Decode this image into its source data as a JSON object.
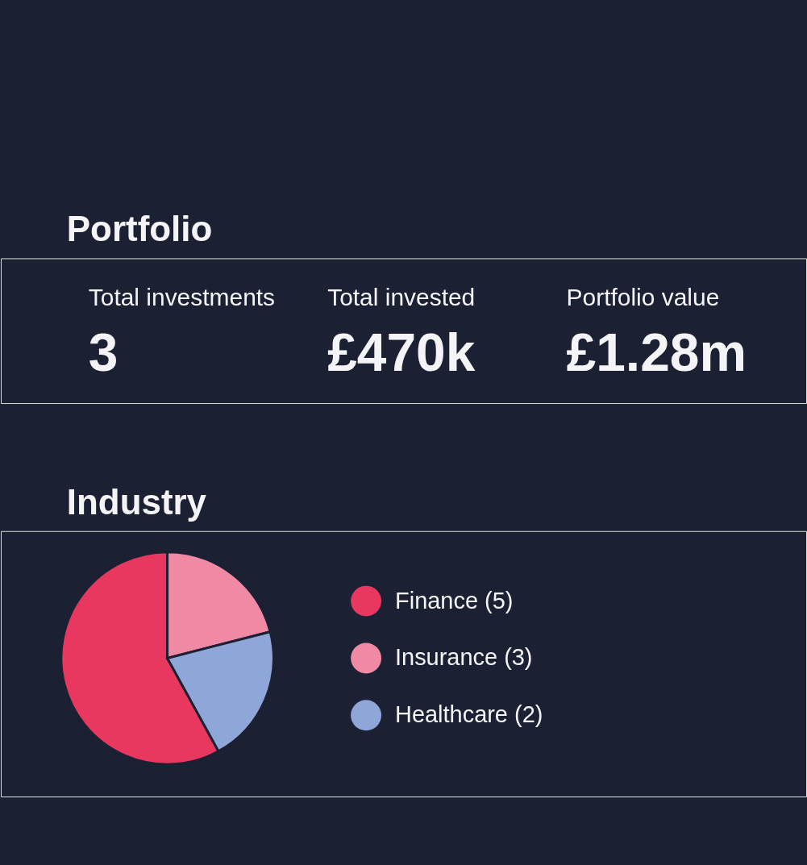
{
  "chart_data": [
    {
      "type": "other",
      "title": "Portfolio",
      "annotations": [
        "Total investments",
        "3",
        "Total invested",
        "£470k",
        "Portfolio value",
        "£1.28m"
      ]
    },
    {
      "type": "pie",
      "title": "Industry",
      "categories": [
        "Finance (5)",
        "Insurance (3)",
        "Healthcare (2)"
      ],
      "values": [
        58,
        21,
        21
      ],
      "colors": [
        "#e8385f",
        "#f08aa4",
        "#8ea6d8"
      ],
      "legend": "right"
    }
  ]
}
